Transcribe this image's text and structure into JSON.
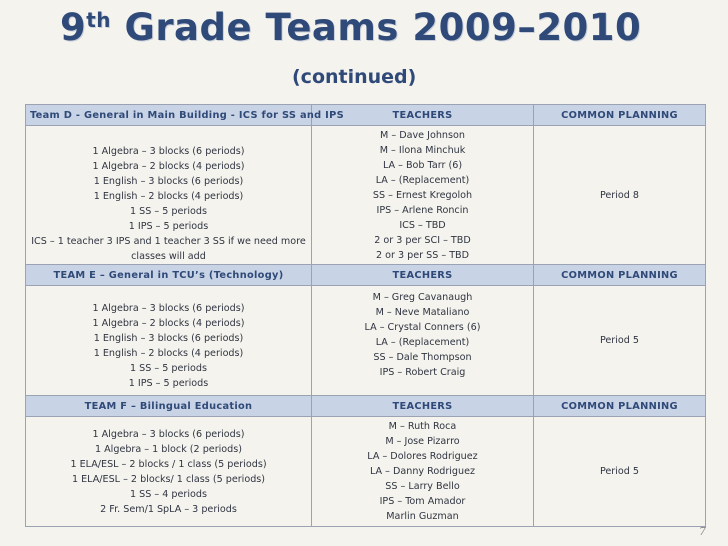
{
  "title": {
    "prefix": "9",
    "sup": "th",
    "rest": " Grade Teams  2009–2010"
  },
  "subtitle": "(continued)",
  "teams": [
    {
      "header": "Team D - General in Main Building - ICS for SS and IPS",
      "teachers_header": "TEACHERS",
      "planning_header": "COMMON PLANNING",
      "classes": [
        "1 Algebra – 3 blocks (6 periods)",
        "1 Algebra – 2 blocks (4 periods)",
        "1 English – 3 blocks (6 periods)",
        "1 English – 2 blocks (4 periods)",
        "1 SS – 5 periods",
        "1 IPS – 5 periods",
        "ICS – 1 teacher 3 IPS and 1 teacher 3 SS if we need more classes will add"
      ],
      "teachers": [
        "M – Dave Johnson",
        "M – Ilona Minchuk",
        "LA – Bob Tarr (6)",
        "LA – (Replacement)",
        "SS – Ernest Kregoloh",
        "IPS – Arlene Roncin",
        "ICS – TBD",
        "2 or 3 per SCI –  TBD",
        "2 or 3 per SS – TBD"
      ],
      "planning": "Period 8"
    },
    {
      "header": "TEAM E – General in TCU’s (Technology)",
      "teachers_header": "TEACHERS",
      "planning_header": "COMMON PLANNING",
      "classes": [
        "1 Algebra – 3 blocks (6 periods)",
        "1 Algebra – 2 blocks (4 periods)",
        "1 English – 3 blocks (6 periods)",
        "1 English – 2 blocks (4 periods)",
        "1 SS – 5 periods",
        "1 IPS – 5 periods"
      ],
      "teachers": [
        "M – Greg Cavanaugh",
        "M – Neve Mataliano",
        "LA – Crystal Conners (6)",
        "LA – (Replacement)",
        "SS – Dale Thompson",
        "IPS – Robert Craig"
      ],
      "planning": "Period 5"
    },
    {
      "header": "TEAM F – Bilingual Education",
      "teachers_header": "TEACHERS",
      "planning_header": "COMMON PLANNING",
      "classes": [
        "1 Algebra – 3 blocks (6 periods)",
        "1 Algebra – 1 block (2 periods)",
        "1 ELA/ESL – 2 blocks / 1 class (5 periods)",
        "1 ELA/ESL – 2 blocks/ 1 class (5 periods)",
        "1 SS – 4 periods",
        "2 Fr. Sem/1 SpLA – 3 periods"
      ],
      "teachers": [
        "M – Ruth Roca",
        "M – Jose Pizarro",
        "LA – Dolores Rodriguez",
        "LA – Danny Rodriguez",
        "SS – Larry Bello",
        "IPS – Tom Amador",
        "Marlin Guzman"
      ],
      "planning": "Period  5"
    }
  ],
  "page_number": "7"
}
